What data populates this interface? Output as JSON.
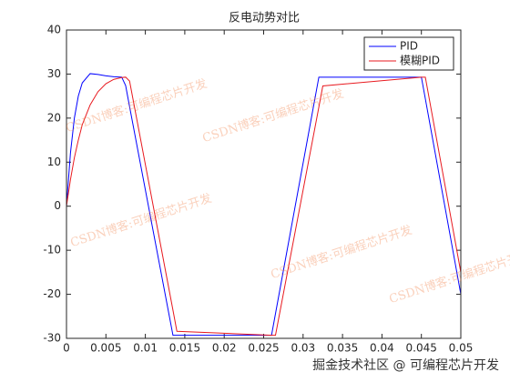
{
  "chart_data": {
    "type": "line",
    "title": "反电动势对比",
    "x": [
      0,
      0.0005,
      0.001,
      0.0015,
      0.002,
      0.003,
      0.004,
      0.005,
      0.006,
      0.007,
      0.0075,
      0.008,
      0.0135,
      0.014,
      0.026,
      0.0265,
      0.032,
      0.0325,
      0.045,
      0.0455,
      0.05
    ],
    "series": [
      {
        "name": "PID",
        "color": "#0000ff",
        "values": [
          0,
          12,
          20,
          25,
          28,
          30.1,
          29.9,
          29.6,
          29.4,
          29.3,
          27.4,
          22.6,
          -29.3,
          -29.3,
          -29.3,
          -24.4,
          29.3,
          29.3,
          29.3,
          24.4,
          -20
        ]
      },
      {
        "name": "模糊PID",
        "color": "#e8191f",
        "values": [
          0,
          6,
          11,
          15,
          18.5,
          23,
          26,
          27.8,
          28.8,
          29.2,
          29.3,
          28.4,
          -23.6,
          -28.4,
          -29.3,
          -29.3,
          22.5,
          27.3,
          29.3,
          29.3,
          -15
        ]
      }
    ],
    "xlim": [
      0,
      0.05
    ],
    "ylim": [
      -30,
      40
    ],
    "xticks": [
      0,
      0.005,
      0.01,
      0.015,
      0.02,
      0.025,
      0.03,
      0.035,
      0.04,
      0.045,
      0.05
    ],
    "yticks": [
      -30,
      -20,
      -10,
      0,
      10,
      20,
      30,
      40
    ],
    "grid": false,
    "legend": "top-right",
    "watermarks": [
      "CSDN博客:可编程芯片开发",
      "CSDN博客:可编程芯片开发",
      "CSDN博客:可编程芯片开发",
      "CSDN博客:可编程芯片开发",
      "CSDN博客:可编程芯片开发"
    ],
    "footer": "掘金技术社区 @ 可编程芯片开发"
  }
}
